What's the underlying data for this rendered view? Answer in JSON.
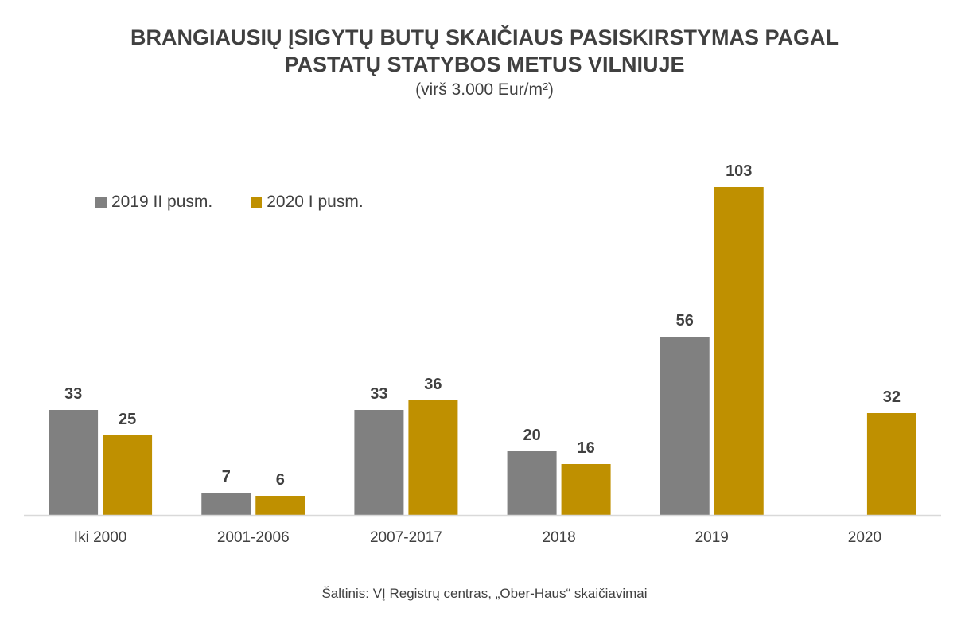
{
  "title_line1": "BRANGIAUSIŲ ĮSIGYTŲ BUTŲ SKAIČIAUS PASISKIRSTYMAS PAGAL",
  "title_line2": "PASTATŲ STATYBOS METUS VILNIUJE",
  "subtitle": "(virš 3.000 Eur/m²)",
  "source": "Šaltinis: VĮ Registrų centras, „Ober-Haus“ skaičiavimai",
  "chart_data": {
    "type": "bar",
    "title": "BRANGIAUSIŲ ĮSIGYTŲ BUTŲ SKAIČIAUS PASISKIRSTYMAS PAGAL PASTATŲ STATYBOS METUS VILNIUJE",
    "subtitle": "(virš 3.000 Eur/m²)",
    "categories": [
      "Iki 2000",
      "2001-2006",
      "2007-2017",
      "2018",
      "2019",
      "2020"
    ],
    "series": [
      {
        "name": "2019 II pusm.",
        "color": "#808080",
        "values": [
          33,
          7,
          33,
          20,
          56,
          null
        ]
      },
      {
        "name": "2020 I pusm.",
        "color": "#BF9000",
        "values": [
          25,
          6,
          36,
          16,
          103,
          32
        ]
      }
    ],
    "ylim": [
      0,
      110
    ],
    "grid": false,
    "legend": "top-left",
    "data_labels": true
  }
}
